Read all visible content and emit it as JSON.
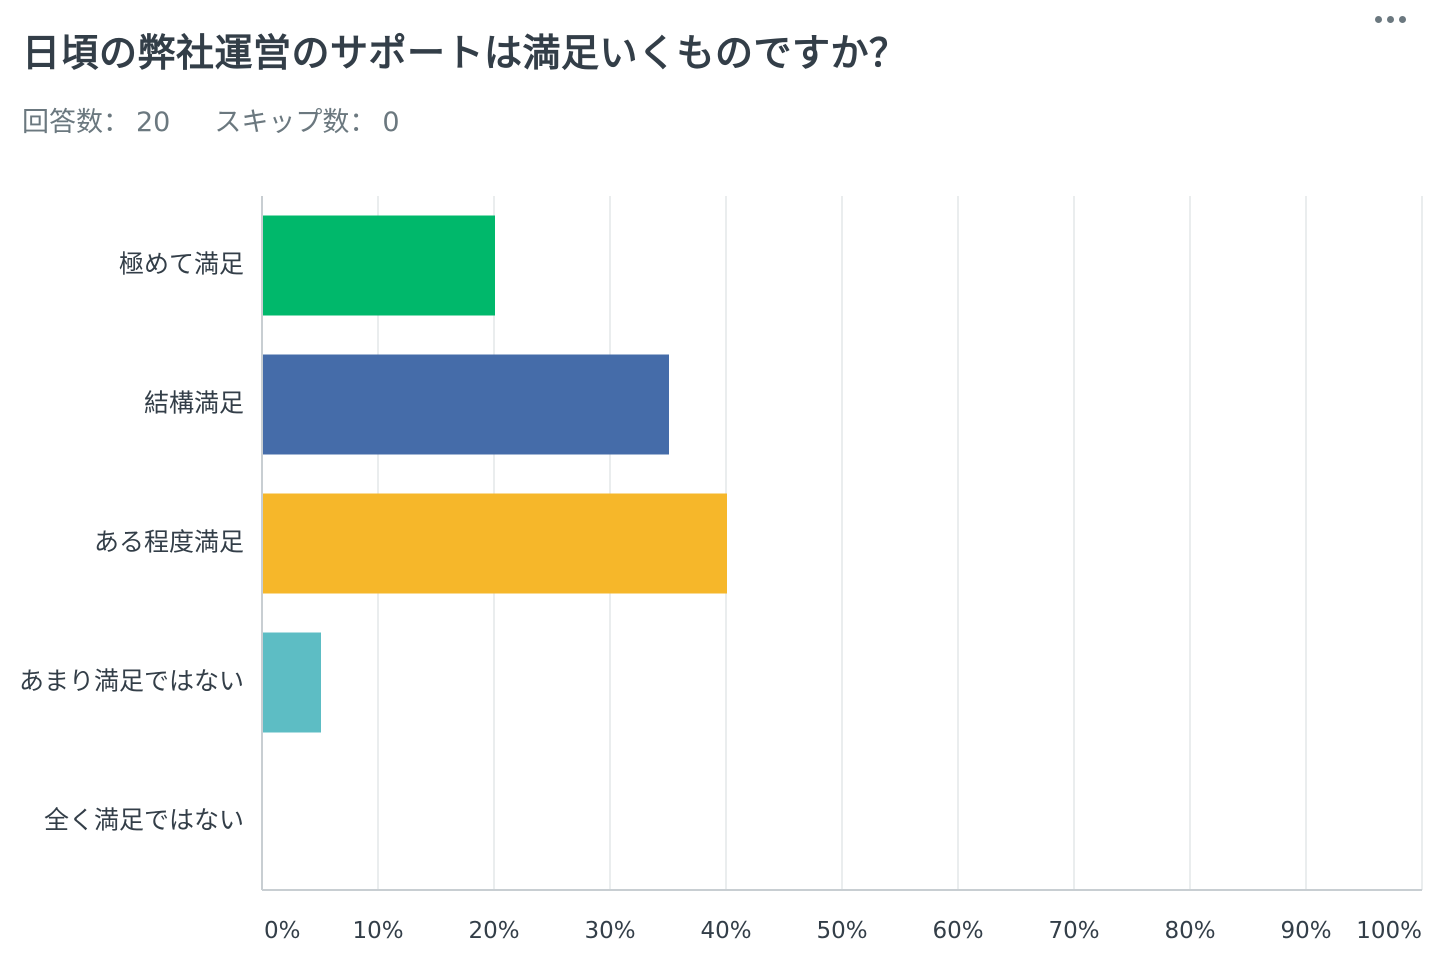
{
  "question": {
    "title": "日頃の弊社運営のサポートは満足いくものですか？"
  },
  "stats": {
    "responses_label": "回答数：",
    "responses_value": "20",
    "skipped_label": "スキップ数：",
    "skipped_value": "0"
  },
  "menu": {
    "icon": "more-horizontal-icon"
  },
  "chart_data": {
    "type": "bar",
    "orientation": "horizontal",
    "categories": [
      "極めて満足",
      "結構満足",
      "ある程度満足",
      "あまり満足ではない",
      "全く満足ではない"
    ],
    "values": [
      20,
      35,
      40,
      5,
      0
    ],
    "colors": [
      "#00b86b",
      "#456ca9",
      "#f6b72a",
      "#5dbdc4",
      "#c2c9ce"
    ],
    "xlim": [
      0,
      100
    ],
    "xticks": [
      "0%",
      "10%",
      "20%",
      "30%",
      "40%",
      "50%",
      "60%",
      "70%",
      "80%",
      "90%",
      "100%"
    ],
    "grid": true,
    "legend": "none"
  }
}
